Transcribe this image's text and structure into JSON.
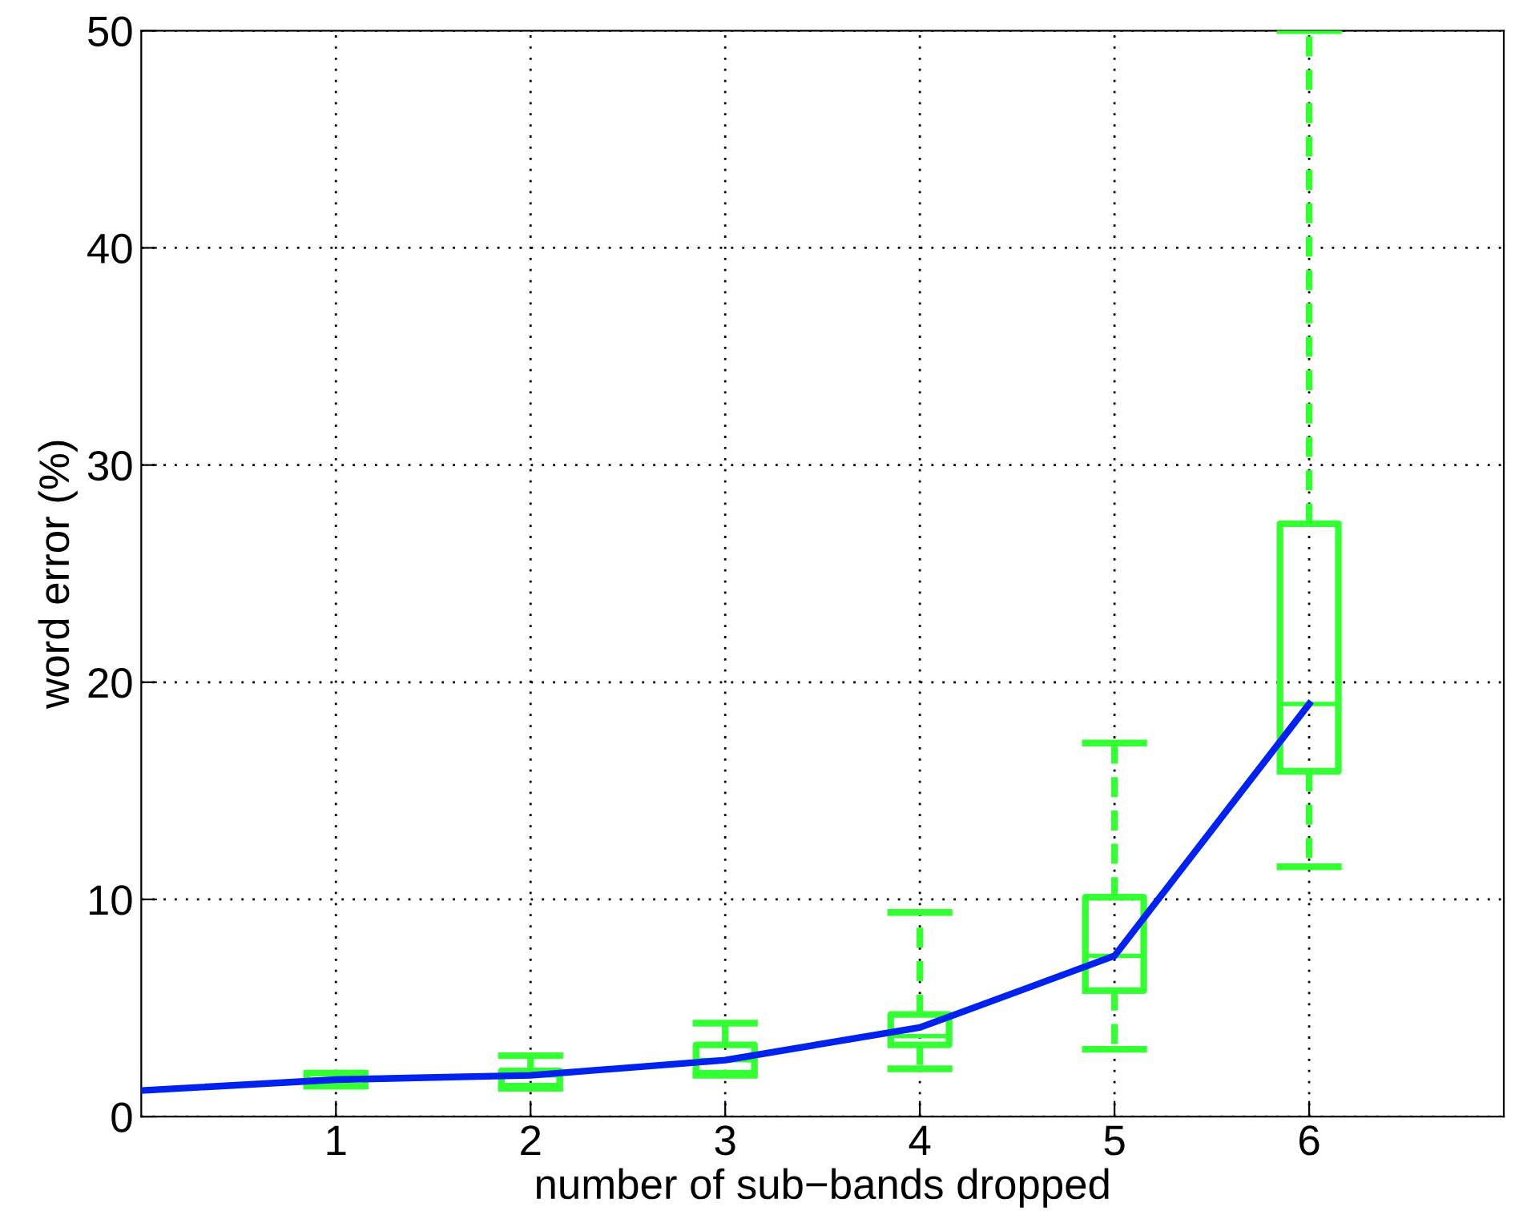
{
  "chart_data": {
    "type": "box",
    "xlabel": "number of sub−bands dropped",
    "ylabel": "word error (%)",
    "x": [
      1,
      2,
      3,
      4,
      5,
      6
    ],
    "xlim": [
      0,
      7
    ],
    "xticks": [
      1,
      2,
      3,
      4,
      5,
      6
    ],
    "ylim": [
      0,
      50
    ],
    "yticks": [
      0,
      10,
      20,
      30,
      40,
      50
    ],
    "grid": true,
    "series": [
      {
        "color": "#33ff33",
        "line_style": "dashed",
        "boxes": [
          {
            "low": 1.4,
            "q1": 1.4,
            "median": 1.7,
            "q3": 2.0,
            "high": 2.0
          },
          {
            "low": 1.3,
            "q1": 1.4,
            "median": 1.9,
            "q3": 2.1,
            "high": 2.8
          },
          {
            "low": 1.9,
            "q1": 2.0,
            "median": 2.6,
            "q3": 3.3,
            "high": 4.3
          },
          {
            "low": 2.2,
            "q1": 3.3,
            "median": 3.7,
            "q3": 4.7,
            "high": 9.4
          },
          {
            "low": 3.1,
            "q1": 5.8,
            "median": 7.4,
            "q3": 10.1,
            "high": 17.2
          },
          {
            "low": 11.5,
            "q1": 15.9,
            "median": 19.0,
            "q3": 27.3,
            "high": 50
          }
        ]
      },
      {
        "type": "line",
        "color": "#0022ee",
        "line_style": "solid",
        "x": [
          0,
          1,
          2,
          3,
          4,
          5,
          6
        ],
        "values": [
          1.2,
          1.7,
          1.9,
          2.6,
          4.1,
          7.4,
          19.0
        ]
      }
    ]
  }
}
